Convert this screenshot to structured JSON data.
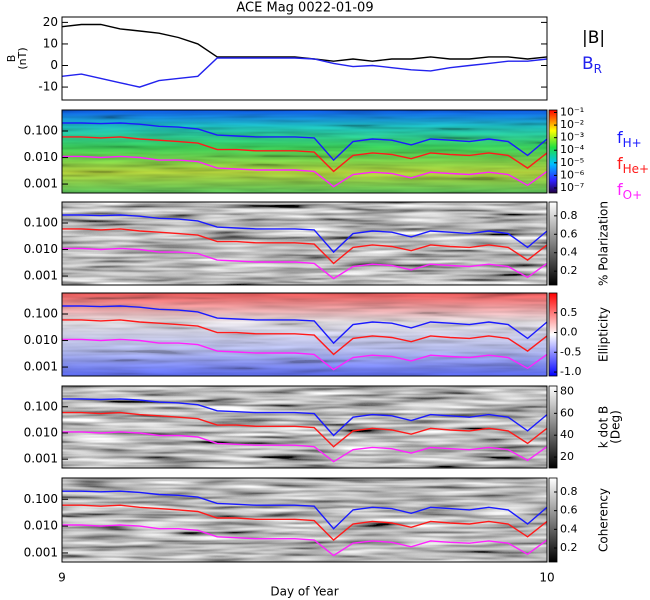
{
  "chart_data": [
    {
      "type": "line",
      "title": "ACE Mag 0022-01-09",
      "ylabel": [
        "B",
        "(nT)"
      ],
      "x": [
        9,
        9.04,
        9.08,
        9.12,
        9.16,
        9.2,
        9.24,
        9.28,
        9.32,
        9.36,
        9.4,
        9.44,
        9.48,
        9.52,
        9.56,
        9.6,
        9.64,
        9.68,
        9.72,
        9.76,
        9.8,
        9.84,
        9.88,
        9.92,
        9.96,
        10
      ],
      "ylim": [
        -16,
        22.5
      ],
      "yticks": [
        -10,
        0,
        10,
        20
      ],
      "series": [
        {
          "name": "|B|",
          "color": "#000000",
          "values": [
            18,
            19,
            19,
            17,
            16,
            15,
            13,
            10,
            4,
            4,
            4,
            4,
            4,
            3,
            2,
            3,
            2,
            3,
            3,
            4,
            3,
            3,
            4,
            4,
            3,
            4
          ]
        },
        {
          "name": "B",
          "name_sub": "R",
          "color": "#2222ee",
          "values": [
            -5,
            -4,
            -6,
            -8,
            -10,
            -7,
            -6,
            -5,
            3.5,
            3.5,
            3.5,
            3.5,
            3.5,
            3,
            1,
            -0.5,
            0,
            -1,
            -2,
            -2.5,
            -1,
            0,
            1,
            2,
            2,
            3
          ]
        }
      ]
    },
    {
      "type": "spectrogram",
      "ylog": true,
      "ylim": [
        0.00046,
        0.62
      ],
      "yticks": [
        {
          "value": 0.1,
          "label": "0.100"
        },
        {
          "value": 0.01,
          "label": "0.010"
        },
        0.001
      ],
      "colormap": "rainbow",
      "clim": [
        -7.4,
        -0.8
      ],
      "cticks": [
        {
          "value": -1,
          "label": "10⁻¹"
        },
        {
          "value": -2,
          "label": "10⁻²"
        },
        {
          "value": -3,
          "label": "10⁻³"
        },
        {
          "value": -4,
          "label": "10⁻⁴"
        },
        {
          "value": -5,
          "label": "10⁻⁵"
        },
        {
          "value": -6,
          "label": "10⁻⁶"
        },
        {
          "value": -7,
          "label": "10⁻⁷"
        }
      ],
      "x": [
        9,
        9.04,
        9.08,
        9.12,
        9.16,
        9.2,
        9.24,
        9.28,
        9.32,
        9.36,
        9.4,
        9.44,
        9.48,
        9.52,
        9.56,
        9.6,
        9.64,
        9.68,
        9.72,
        9.76,
        9.8,
        9.84,
        9.88,
        9.92,
        9.96,
        10
      ],
      "series": [
        {
          "name": "f",
          "name_sub": "H+",
          "color": "#1a1aff",
          "values": [
            0.2,
            0.2,
            0.19,
            0.2,
            0.18,
            0.15,
            0.14,
            0.12,
            0.07,
            0.065,
            0.06,
            0.06,
            0.06,
            0.055,
            0.008,
            0.04,
            0.05,
            0.045,
            0.03,
            0.05,
            0.045,
            0.04,
            0.05,
            0.04,
            0.012,
            0.05
          ]
        },
        {
          "name": "f",
          "name_sub": "He+",
          "color": "#ff1a1a",
          "values": [
            0.06,
            0.06,
            0.055,
            0.06,
            0.05,
            0.045,
            0.04,
            0.035,
            0.02,
            0.02,
            0.018,
            0.018,
            0.018,
            0.016,
            0.003,
            0.012,
            0.015,
            0.013,
            0.009,
            0.015,
            0.013,
            0.012,
            0.015,
            0.012,
            0.004,
            0.015
          ]
        },
        {
          "name": "f",
          "name_sub": "O+",
          "color": "#ff22ff",
          "values": [
            0.011,
            0.011,
            0.01,
            0.011,
            0.01,
            0.008,
            0.008,
            0.007,
            0.004,
            0.0037,
            0.0034,
            0.0034,
            0.0034,
            0.003,
            0.0008,
            0.0023,
            0.0028,
            0.0025,
            0.0017,
            0.0028,
            0.0025,
            0.0023,
            0.0028,
            0.0023,
            0.0009,
            0.003
          ]
        }
      ]
    },
    {
      "type": "spectrogram",
      "ylog": true,
      "ylim": [
        0.00046,
        0.62
      ],
      "yticks": [
        {
          "value": 0.1,
          "label": "0.100"
        },
        {
          "value": 0.01,
          "label": "0.010"
        },
        0.001
      ],
      "colormap": "gray",
      "clim": [
        0.05,
        0.95
      ],
      "cticks": [
        0.2,
        0.4,
        0.6,
        0.8
      ],
      "clabel": "% Polarization"
    },
    {
      "type": "spectrogram",
      "ylog": true,
      "ylim": [
        0.00046,
        0.62
      ],
      "yticks": [
        {
          "value": 0.1,
          "label": "0.100"
        },
        {
          "value": 0.01,
          "label": "0.010"
        },
        0.001
      ],
      "colormap": "bwr",
      "clim": [
        -1.1,
        1
      ],
      "cticks": [
        {
          "value": -1,
          "label": "-1.0"
        },
        -0.5,
        {
          "value": 0,
          "label": "0.0"
        },
        0.5
      ],
      "clabel": "Ellipticity"
    },
    {
      "type": "spectrogram",
      "ylog": true,
      "ylim": [
        0.00046,
        0.62
      ],
      "yticks": [
        {
          "value": 0.1,
          "label": "0.100"
        },
        {
          "value": 0.01,
          "label": "0.010"
        },
        0.001
      ],
      "colormap": "gray",
      "clim": [
        10,
        85
      ],
      "cticks": [
        20,
        40,
        60,
        80
      ],
      "clabel": [
        "k dot B",
        "(Deg)"
      ]
    },
    {
      "type": "spectrogram",
      "ylog": true,
      "ylim": [
        0.00046,
        0.62
      ],
      "yticks": [
        {
          "value": 0.1,
          "label": "0.100"
        },
        {
          "value": 0.01,
          "label": "0.010"
        },
        0.001
      ],
      "colormap": "gray",
      "clim": [
        0.05,
        0.95
      ],
      "cticks": [
        0.2,
        0.4,
        0.6,
        0.8
      ],
      "clabel": "Coherency",
      "xlim": [
        9,
        10
      ],
      "xticks": [
        9,
        10
      ],
      "xlabel": "Day of Year"
    }
  ]
}
